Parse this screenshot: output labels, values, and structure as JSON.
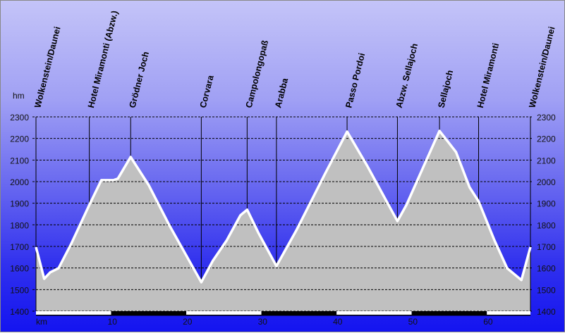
{
  "chart_data": {
    "type": "area",
    "yunit": "hm",
    "xunit": "km",
    "ylim": [
      1400,
      2300
    ],
    "xlim": [
      0,
      65.8
    ],
    "yticks": [
      1400,
      1500,
      1600,
      1700,
      1800,
      1900,
      2000,
      2100,
      2200,
      2300
    ],
    "xticks": [
      10,
      20,
      30,
      40,
      50,
      60
    ],
    "grid": true,
    "colors": {
      "fill": "#c0c0c0",
      "line": "#ffffff",
      "grid": "#000000"
    },
    "profile": [
      [
        0,
        1697
      ],
      [
        1.1,
        1550
      ],
      [
        1.9,
        1580
      ],
      [
        3.0,
        1599
      ],
      [
        4.7,
        1713
      ],
      [
        7.1,
        1892
      ],
      [
        8.7,
        2007
      ],
      [
        10.3,
        2007
      ],
      [
        10.9,
        2014
      ],
      [
        12.6,
        2114
      ],
      [
        15.0,
        1984
      ],
      [
        17.8,
        1795
      ],
      [
        20.7,
        1615
      ],
      [
        22.0,
        1534
      ],
      [
        23.5,
        1632
      ],
      [
        25.4,
        1729
      ],
      [
        27.2,
        1844
      ],
      [
        28.1,
        1870
      ],
      [
        29.6,
        1763
      ],
      [
        32.0,
        1609
      ],
      [
        34.7,
        1778
      ],
      [
        38.5,
        2039
      ],
      [
        41.4,
        2232
      ],
      [
        44.1,
        2072
      ],
      [
        48.1,
        1817
      ],
      [
        49.3,
        1892
      ],
      [
        51.6,
        2072
      ],
      [
        53.7,
        2235
      ],
      [
        55.9,
        2137
      ],
      [
        57.7,
        1974
      ],
      [
        58.9,
        1909
      ],
      [
        61.0,
        1729
      ],
      [
        62.7,
        1599
      ],
      [
        64.6,
        1544
      ],
      [
        65.8,
        1697
      ]
    ],
    "waypoints": [
      {
        "name": "Wolkenstein/Daunei",
        "km": 0
      },
      {
        "name": "Hotel Miramonti (Abzw.)",
        "km": 7.1
      },
      {
        "name": "Grödner Joch",
        "km": 12.6
      },
      {
        "name": "Corvara",
        "km": 22.0
      },
      {
        "name": "Campolongopaß",
        "km": 28.1
      },
      {
        "name": "Arabba",
        "km": 32.0
      },
      {
        "name": "Passo Pordoi",
        "km": 41.4
      },
      {
        "name": "Abzw. Sellajoch",
        "km": 48.1
      },
      {
        "name": "Sellajoch",
        "km": 53.7
      },
      {
        "name": "Hotel Miramonti",
        "km": 58.9
      },
      {
        "name": "Wolkenstein/Daunei",
        "km": 65.8
      }
    ]
  }
}
